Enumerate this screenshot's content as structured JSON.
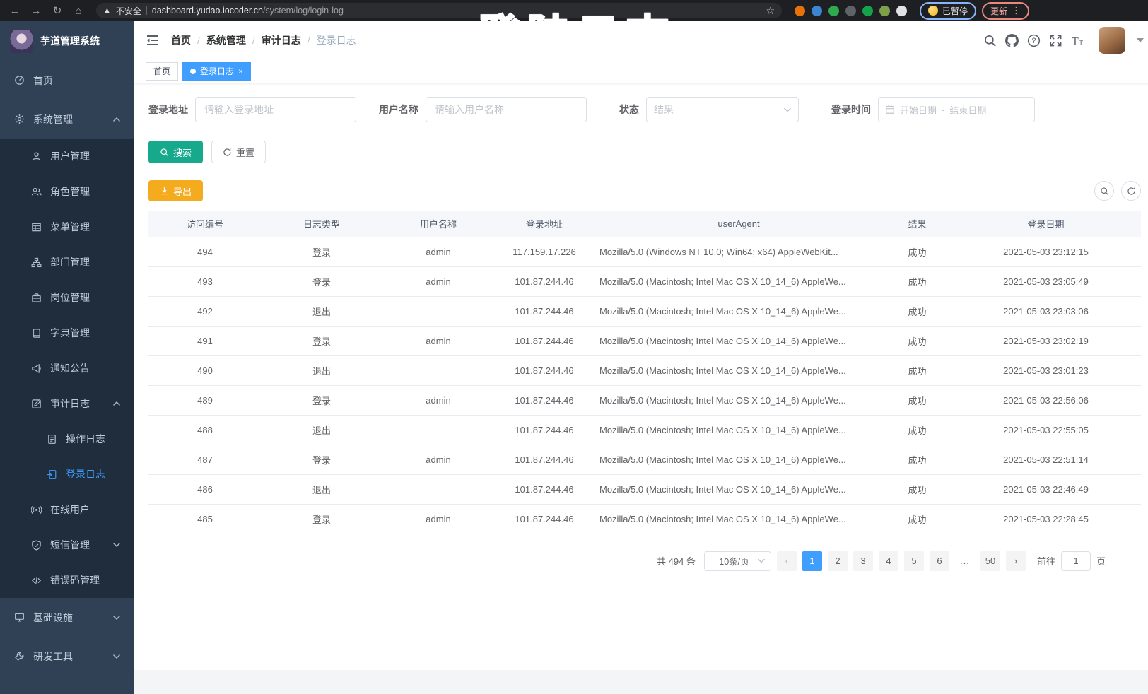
{
  "browser": {
    "security_label": "不安全",
    "url_host": "dashboard.yudao.iocoder.cn",
    "url_path": "/system/log/login-log",
    "paused_label": "已暂停",
    "update_label": "更新",
    "extension_colors": [
      "#e8710a",
      "#3d85d1",
      "#2fab4f",
      "#5f6368",
      "#15a24a",
      "#7fa04a",
      "#dfe1e5"
    ]
  },
  "overlay": {
    "title": "登陆日志"
  },
  "sidebar": {
    "logo_title": "芋道管理系统",
    "items": [
      {
        "label": "首页",
        "icon": "dashboard-icon",
        "level": 1,
        "dark": false
      },
      {
        "label": "系统管理",
        "icon": "gear-icon",
        "level": 1,
        "dark": false,
        "arrow": "up"
      },
      {
        "label": "用户管理",
        "icon": "user-icon",
        "level": 2,
        "dark": true
      },
      {
        "label": "角色管理",
        "icon": "roles-icon",
        "level": 2,
        "dark": true
      },
      {
        "label": "菜单管理",
        "icon": "menu-tree-icon",
        "level": 2,
        "dark": true
      },
      {
        "label": "部门管理",
        "icon": "dept-icon",
        "level": 2,
        "dark": true
      },
      {
        "label": "岗位管理",
        "icon": "post-icon",
        "level": 2,
        "dark": true
      },
      {
        "label": "字典管理",
        "icon": "dict-icon",
        "level": 2,
        "dark": true
      },
      {
        "label": "通知公告",
        "icon": "notice-icon",
        "level": 2,
        "dark": true
      },
      {
        "label": "审计日志",
        "icon": "audit-log-icon",
        "level": 2,
        "dark": true,
        "arrow": "up"
      },
      {
        "label": "操作日志",
        "icon": "operate-log-icon",
        "level": 3,
        "dark": true
      },
      {
        "label": "登录日志",
        "icon": "login-log-icon",
        "level": 3,
        "dark": true,
        "active": true
      },
      {
        "label": "在线用户",
        "icon": "online-user-icon",
        "level": 2,
        "dark": true
      },
      {
        "label": "短信管理",
        "icon": "sms-icon",
        "level": 2,
        "dark": true,
        "arrow": "down"
      },
      {
        "label": "错误码管理",
        "icon": "error-code-icon",
        "level": 2,
        "dark": true
      },
      {
        "label": "基础设施",
        "icon": "infra-icon",
        "level": 1,
        "dark": false,
        "arrow": "down"
      },
      {
        "label": "研发工具",
        "icon": "devtool-icon",
        "level": 1,
        "dark": false,
        "arrow": "down"
      }
    ]
  },
  "header": {
    "breadcrumbs": [
      "首页",
      "系统管理",
      "审计日志",
      "登录日志"
    ]
  },
  "tags": [
    {
      "label": "首页",
      "active": false
    },
    {
      "label": "登录日志",
      "active": true,
      "closable": true
    }
  ],
  "filters": {
    "fields": [
      {
        "label": "登录地址",
        "placeholder": "请输入登录地址"
      },
      {
        "label": "用户名称",
        "placeholder": "请输入用户名称"
      },
      {
        "label": "状态",
        "placeholder": "结果"
      },
      {
        "label": "登录时间",
        "start_placeholder": "开始日期",
        "separator": "-",
        "end_placeholder": "结束日期"
      }
    ],
    "search_label": "搜索",
    "reset_label": "重置"
  },
  "toolbar": {
    "export_label": "导出"
  },
  "table": {
    "columns": [
      "访问编号",
      "日志类型",
      "用户名称",
      "登录地址",
      "userAgent",
      "结果",
      "登录日期"
    ],
    "rows": [
      [
        "494",
        "登录",
        "admin",
        "117.159.17.226",
        "Mozilla/5.0 (Windows NT 10.0; Win64; x64) AppleWebKit...",
        "成功",
        "2021-05-03 23:12:15"
      ],
      [
        "493",
        "登录",
        "admin",
        "101.87.244.46",
        "Mozilla/5.0 (Macintosh; Intel Mac OS X 10_14_6) AppleWe...",
        "成功",
        "2021-05-03 23:05:49"
      ],
      [
        "492",
        "退出",
        "",
        "101.87.244.46",
        "Mozilla/5.0 (Macintosh; Intel Mac OS X 10_14_6) AppleWe...",
        "成功",
        "2021-05-03 23:03:06"
      ],
      [
        "491",
        "登录",
        "admin",
        "101.87.244.46",
        "Mozilla/5.0 (Macintosh; Intel Mac OS X 10_14_6) AppleWe...",
        "成功",
        "2021-05-03 23:02:19"
      ],
      [
        "490",
        "退出",
        "",
        "101.87.244.46",
        "Mozilla/5.0 (Macintosh; Intel Mac OS X 10_14_6) AppleWe...",
        "成功",
        "2021-05-03 23:01:23"
      ],
      [
        "489",
        "登录",
        "admin",
        "101.87.244.46",
        "Mozilla/5.0 (Macintosh; Intel Mac OS X 10_14_6) AppleWe...",
        "成功",
        "2021-05-03 22:56:06"
      ],
      [
        "488",
        "退出",
        "",
        "101.87.244.46",
        "Mozilla/5.0 (Macintosh; Intel Mac OS X 10_14_6) AppleWe...",
        "成功",
        "2021-05-03 22:55:05"
      ],
      [
        "487",
        "登录",
        "admin",
        "101.87.244.46",
        "Mozilla/5.0 (Macintosh; Intel Mac OS X 10_14_6) AppleWe...",
        "成功",
        "2021-05-03 22:51:14"
      ],
      [
        "486",
        "退出",
        "",
        "101.87.244.46",
        "Mozilla/5.0 (Macintosh; Intel Mac OS X 10_14_6) AppleWe...",
        "成功",
        "2021-05-03 22:46:49"
      ],
      [
        "485",
        "登录",
        "admin",
        "101.87.244.46",
        "Mozilla/5.0 (Macintosh; Intel Mac OS X 10_14_6) AppleWe...",
        "成功",
        "2021-05-03 22:28:45"
      ]
    ]
  },
  "pagination": {
    "total_label": "共 494 条",
    "page_size_label": "10条/页",
    "pages": [
      "1",
      "2",
      "3",
      "4",
      "5",
      "6",
      "...",
      "50"
    ],
    "active_page": "1",
    "goto_label": "前往",
    "goto_value": "1",
    "goto_suffix": "页"
  },
  "colors": {
    "primary": "#409EFF",
    "search_button": "#17A98C",
    "export_button": "#F5AB1E",
    "overlay_pink": "#F4416D",
    "sidebar_bg": "#304156",
    "sidebar_submenu_bg": "#1F2D3D"
  }
}
